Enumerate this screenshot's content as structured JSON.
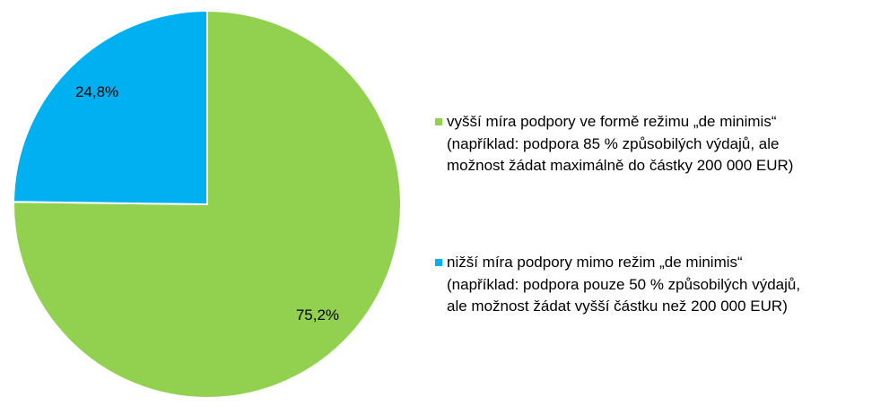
{
  "chart_data": {
    "type": "pie",
    "series": [
      {
        "name": "vyšší míra podpory ve formě režimu „de minimis“\n(například: podpora 85 % způsobilých výdajů, ale\nmožnost žádat maximálně  do částky 200 000 EUR)",
        "color": "#92d050",
        "values": [
          75.2
        ],
        "value_labels": [
          "75,2%"
        ]
      },
      {
        "name": "nižší míra podpory mimo režim „de minimis“\n(například: podpora pouze 50 % způsobilých výdajů,\nale možnost žádat vyšší částku než 200 000 EUR)",
        "color": "#00b0f0",
        "values": [
          24.8
        ],
        "value_labels": [
          "24,8%"
        ]
      }
    ],
    "legend": "right"
  }
}
